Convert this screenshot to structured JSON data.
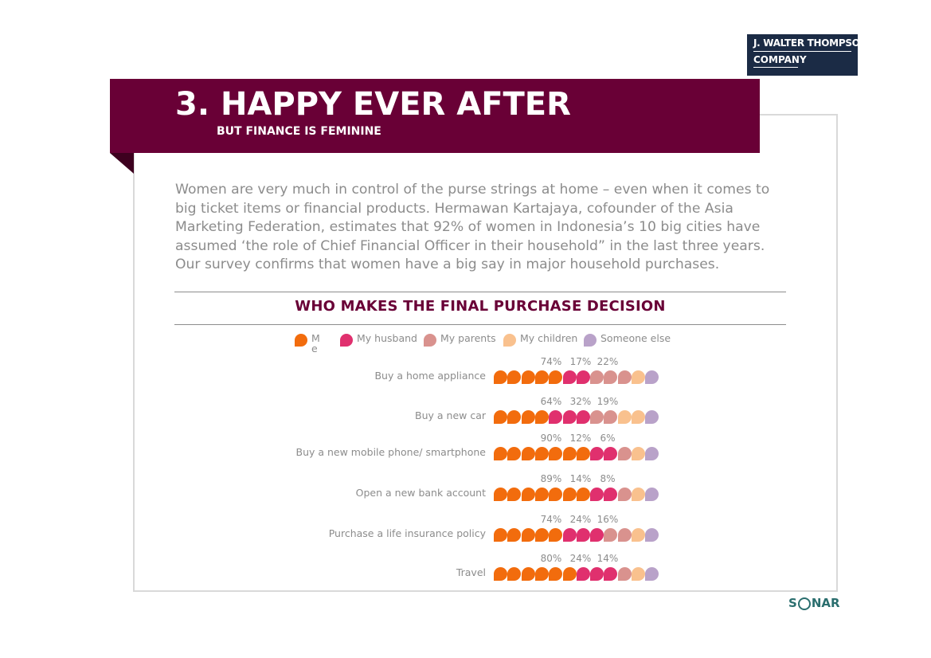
{
  "header": {
    "title": "3. HAPPY EVER AFTER",
    "subtitle": "BUT FINANCE IS FEMININE"
  },
  "logo": {
    "line1": "J. WALTER THOMPSON",
    "line2": "COMPANY"
  },
  "body_text": "Women are very much in control of the purse strings at home – even when it comes to big ticket items or financial products. Hermawan Kartajaya, cofounder of the Asia Marketing Federation, estimates that 92% of women in Indonesia’s 10 big cities have assumed ‘the role of Chief Financial Officer in their household” in the last three years. Our survey confirms that women have a big say in major household purchases.",
  "footer_logo": {
    "left": "S",
    "right": "NAR"
  },
  "chart_data": {
    "type": "bar",
    "subtype": "pictograph-drops",
    "title": "WHO MAKES THE FINAL PURCHASE DECISION",
    "legend": [
      {
        "name": "Me",
        "label_lines": [
          "M",
          "e"
        ],
        "color": "#f26c0d"
      },
      {
        "name": "My husband",
        "label_lines": [
          "My husband"
        ],
        "color": "#e0306e"
      },
      {
        "name": "My parents",
        "label_lines": [
          "My parents"
        ],
        "color": "#d9928e"
      },
      {
        "name": "My children",
        "label_lines": [
          "My children"
        ],
        "color": "#f9c18e"
      },
      {
        "name": "Someone else",
        "label_lines": [
          "Someone else"
        ],
        "color": "#b9a2c9"
      }
    ],
    "icons_per_row": 12,
    "categories": [
      "Buy a home appliance",
      "Buy a new car",
      "Buy a new mobile phone/ smartphone",
      "Open a new bank account",
      "Purchase a life insurance policy",
      "Travel"
    ],
    "series": [
      {
        "name": "Me",
        "values": [
          74,
          64,
          90,
          89,
          74,
          80
        ]
      },
      {
        "name": "My husband",
        "values": [
          17,
          32,
          12,
          14,
          24,
          24
        ]
      },
      {
        "name": "My parents",
        "values": [
          22,
          19,
          6,
          8,
          16,
          14
        ]
      }
    ],
    "value_labels": [
      [
        "74%",
        "17%",
        "22%"
      ],
      [
        "64%",
        "32%",
        "19%"
      ],
      [
        "90%",
        "12%",
        "6%"
      ],
      [
        "89%",
        "14%",
        "8%"
      ],
      [
        "74%",
        "24%",
        "16%"
      ],
      [
        "80%",
        "24%",
        "14%"
      ]
    ],
    "icon_counts": [
      [
        5,
        2,
        3,
        1,
        1
      ],
      [
        4,
        3,
        2,
        2,
        1
      ],
      [
        7,
        2,
        1,
        1,
        1
      ],
      [
        7,
        2,
        1,
        1,
        1
      ],
      [
        5,
        3,
        2,
        1,
        1
      ],
      [
        6,
        3,
        1,
        1,
        1
      ]
    ]
  }
}
